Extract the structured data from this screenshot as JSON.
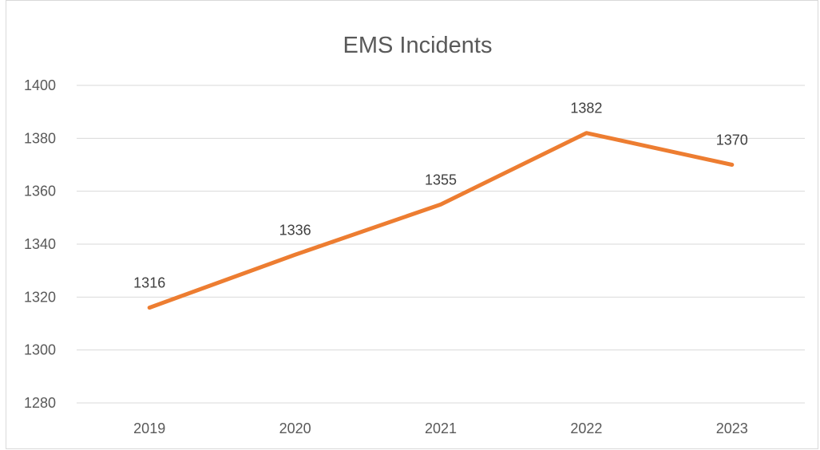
{
  "chart_data": {
    "type": "line",
    "title": "EMS Incidents",
    "xlabel": "",
    "ylabel": "",
    "categories": [
      "2019",
      "2020",
      "2021",
      "2022",
      "2023"
    ],
    "series": [
      {
        "values": [
          1316,
          1336,
          1355,
          1382,
          1370
        ],
        "color": "#ed7d31"
      }
    ],
    "ylim": [
      1280,
      1400
    ],
    "yticks": [
      1280,
      1300,
      1320,
      1340,
      1360,
      1380,
      1400
    ],
    "grid": true,
    "legend": "none",
    "data_labels": true,
    "colors": {
      "line": "#ed7d31",
      "gridline": "#d9d9d9",
      "text": "#595959",
      "data_label": "#404040"
    }
  }
}
